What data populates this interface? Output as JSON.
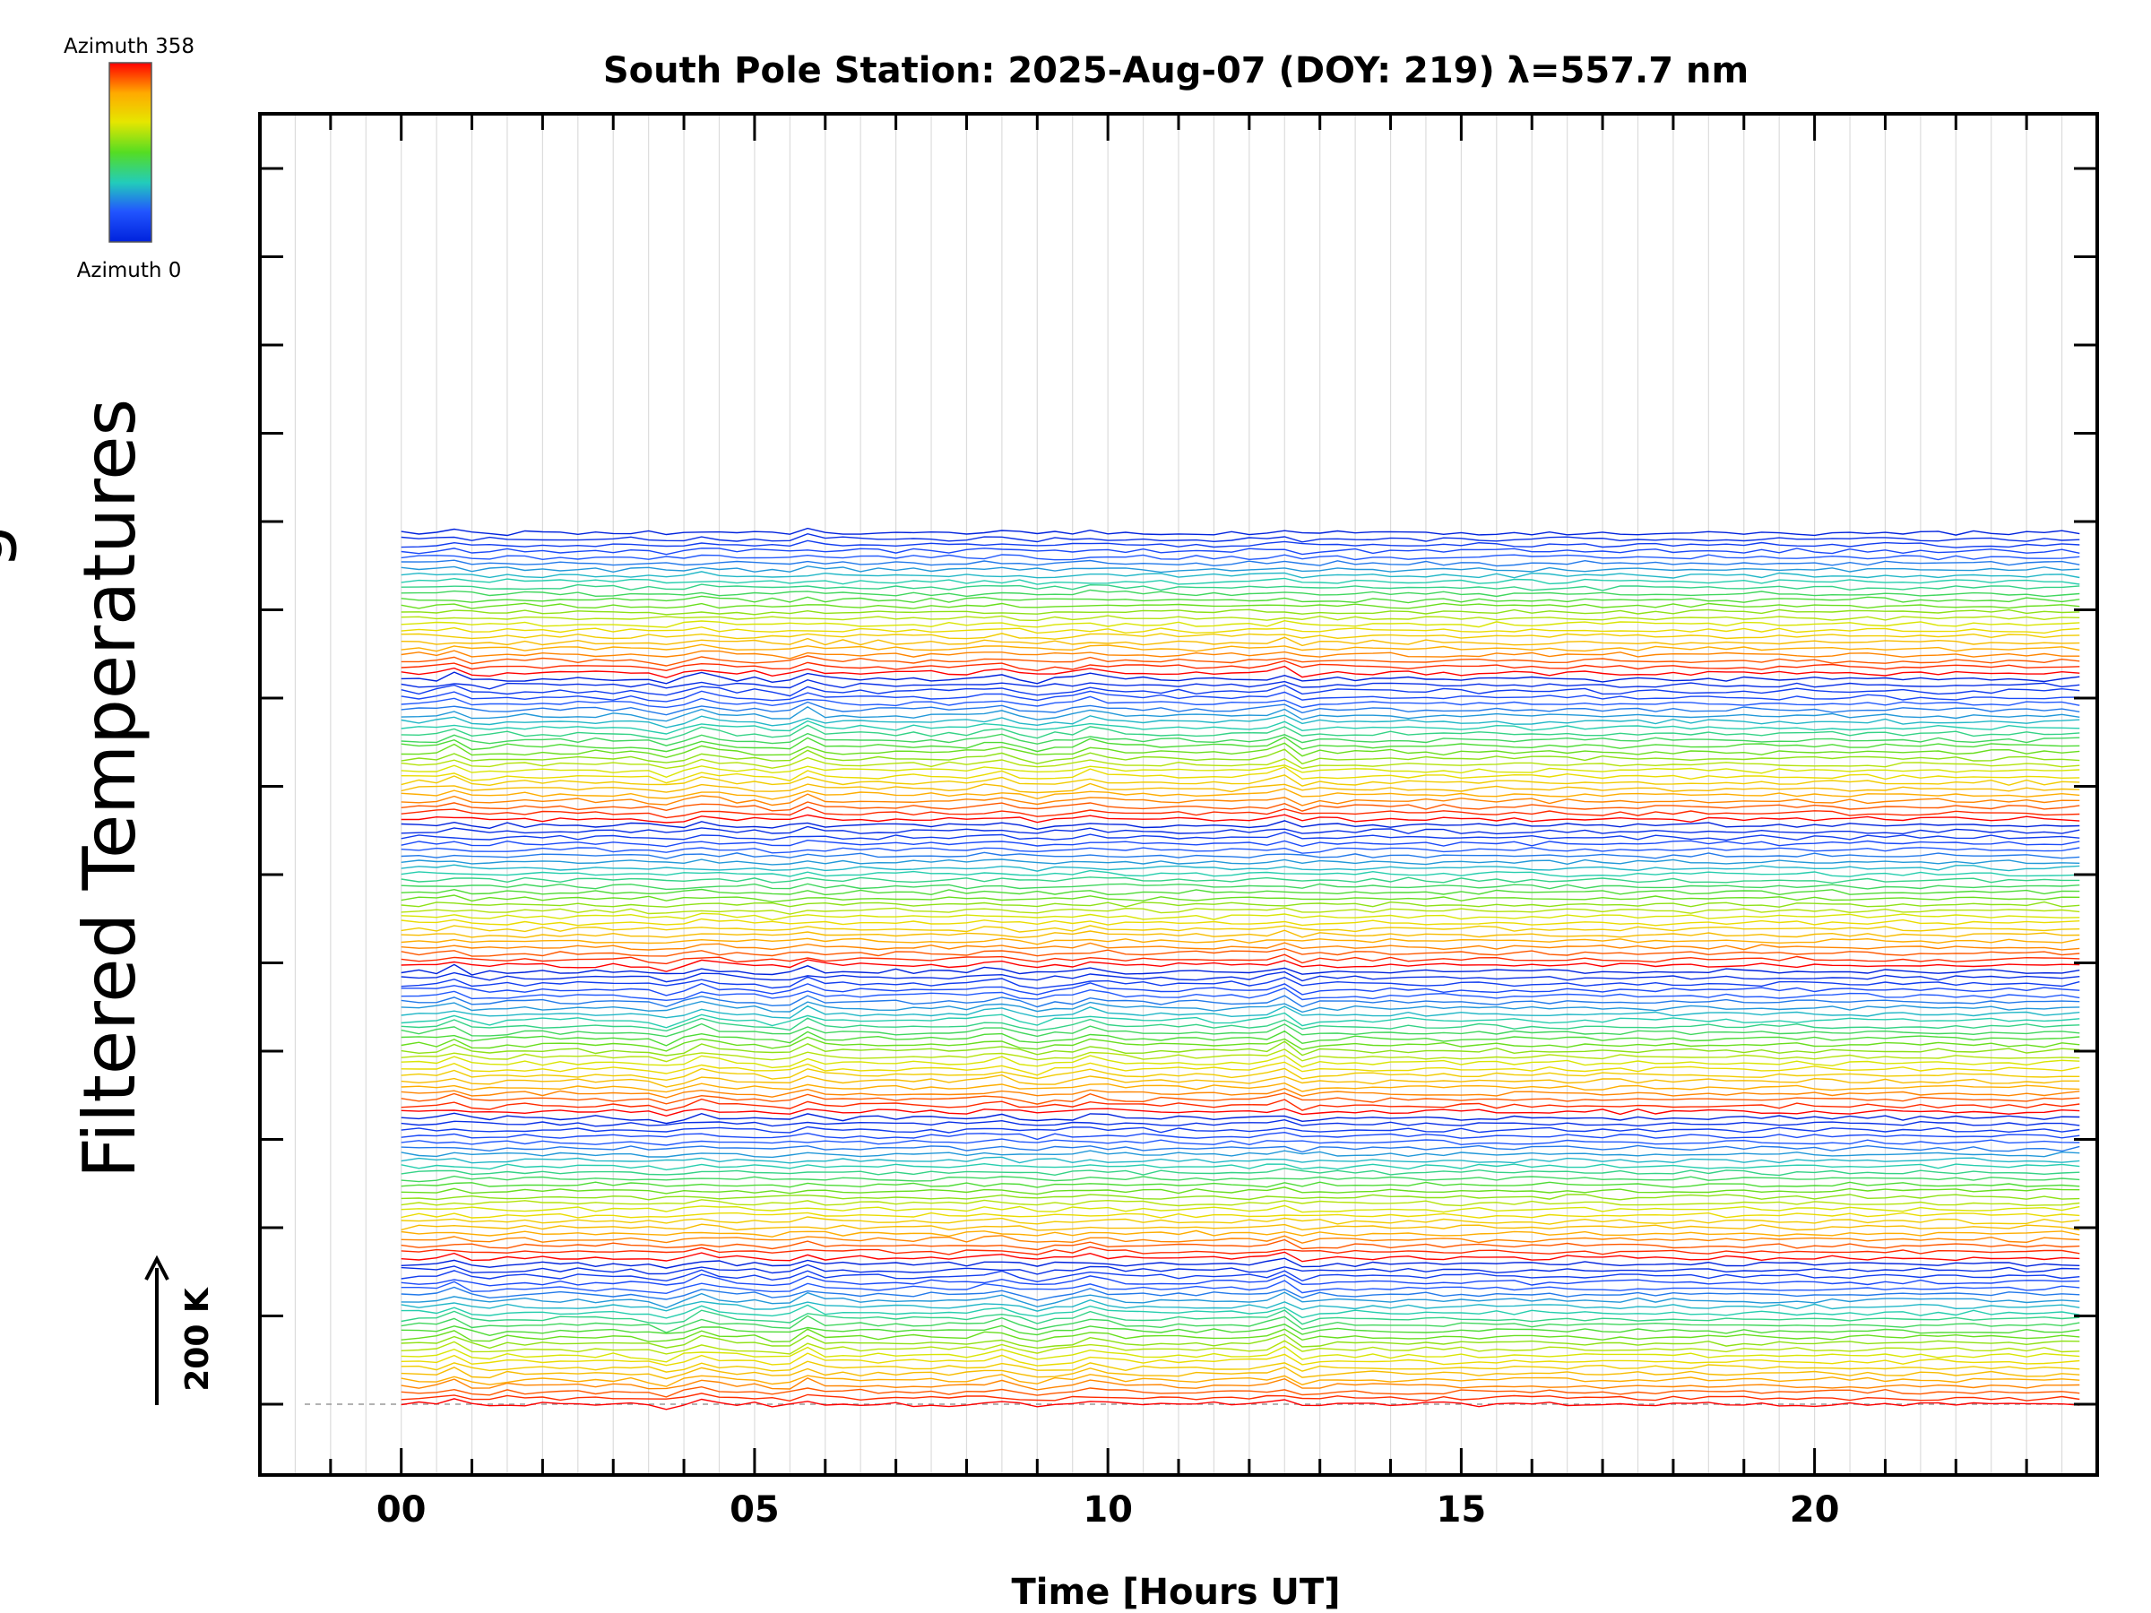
{
  "chart_data": {
    "type": "line",
    "title": "South Pole Station: 2025-Aug-07 (DOY: 219) λ=557.7 nm",
    "xlabel": "Time [Hours UT]",
    "ylabel": "Filtered Temperatures",
    "ylabel_partial": "g",
    "x_tick_labels": [
      "00",
      "05",
      "10",
      "15",
      "20"
    ],
    "x_tick_values": [
      0,
      5,
      10,
      15,
      20
    ],
    "xlim": [
      -2,
      24
    ],
    "data_x_range": [
      0,
      23.75
    ],
    "sample_interval_hours": 0.25,
    "grid": true,
    "y_major_tick_count": 15,
    "trace_count": 144,
    "trace_offset_kelvin": 25,
    "azimuth_range": [
      0,
      358
    ],
    "azimuth_cycles": 6,
    "colorbar": {
      "top_label": "Azimuth 358",
      "bottom_label": "Azimuth 0",
      "colors": [
        "#ff0000",
        "#ffaa00",
        "#e6e600",
        "#55dd22",
        "#22ccbb",
        "#2255ff",
        "#0022dd"
      ]
    },
    "scale_bar": {
      "label": "200 K",
      "value_kelvin": 200
    },
    "common_disturbance_peaks": [
      {
        "time": 0.8,
        "amplitude_kelvin": 20
      },
      {
        "time": 1.1,
        "amplitude_kelvin": -15
      },
      {
        "time": 3.7,
        "amplitude_kelvin": -18
      },
      {
        "time": 4.3,
        "amplitude_kelvin": 22
      },
      {
        "time": 5.4,
        "amplitude_kelvin": -20
      },
      {
        "time": 5.7,
        "amplitude_kelvin": 24
      },
      {
        "time": 8.4,
        "amplitude_kelvin": 18
      },
      {
        "time": 9.0,
        "amplitude_kelvin": -12
      },
      {
        "time": 9.8,
        "amplitude_kelvin": 20
      },
      {
        "time": 12.5,
        "amplitude_kelvin": 28
      },
      {
        "time": 12.7,
        "amplitude_kelvin": -16
      }
    ],
    "baseline_style": "dashed-gray"
  }
}
